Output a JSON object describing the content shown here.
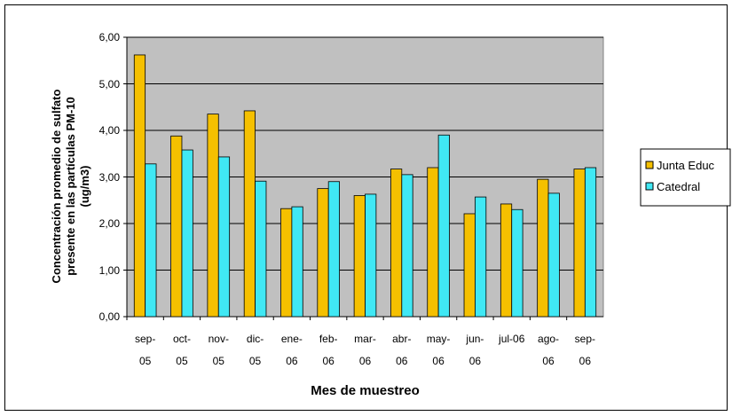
{
  "chart_data": {
    "type": "bar",
    "x_label": "Mes de muestreo",
    "y_label": "Concentración promedio de sulfato\npresente en las partículas PM-10\n(ug/m3)",
    "categories": [
      "sep-\n05",
      "oct-\n05",
      "nov-\n05",
      "dic-\n05",
      "ene-\n06",
      "feb-\n06",
      "mar-\n06",
      "abr-\n06",
      "may-\n06",
      "jun-\n06",
      "jul-06",
      "ago-\n06",
      "sep-\n06"
    ],
    "series": [
      {
        "name": "Junta Educ",
        "color": "#f5c000",
        "values": [
          5.62,
          3.88,
          4.35,
          4.42,
          2.32,
          2.75,
          2.6,
          3.17,
          3.2,
          2.21,
          2.42,
          2.95,
          3.17
        ]
      },
      {
        "name": "Catedral",
        "color": "#40e8f4",
        "values": [
          3.28,
          3.58,
          3.43,
          2.91,
          2.36,
          2.9,
          2.63,
          3.05,
          3.9,
          2.57,
          2.3,
          2.65,
          3.2
        ]
      }
    ],
    "ylim": [
      0,
      6
    ],
    "yticks": [
      {
        "value": 0,
        "label": "0,00"
      },
      {
        "value": 1,
        "label": "1,00"
      },
      {
        "value": 2,
        "label": "2,00"
      },
      {
        "value": 3,
        "label": "3,00"
      },
      {
        "value": 4,
        "label": "4,00"
      },
      {
        "value": 5,
        "label": "5,00"
      },
      {
        "value": 6,
        "label": "6,00"
      }
    ],
    "grid": true,
    "legend": "right"
  }
}
